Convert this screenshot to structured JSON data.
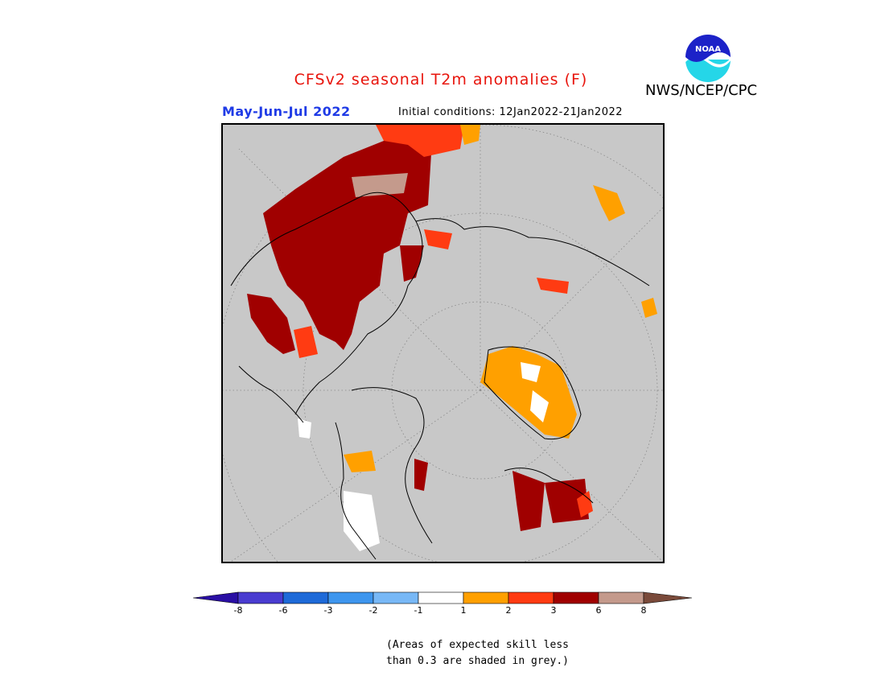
{
  "header": {
    "title": "CFSv2 seasonal T2m anomalies (F)",
    "agency": "NWS/NCEP/CPC",
    "logo_text": "NOAA",
    "season": "May-Jun-Jul 2022",
    "initial_conditions": "Initial conditions: 12Jan2022-21Jan2022"
  },
  "map": {
    "projection": "north-polar-stereographic",
    "grey_color": "#c8c8c8",
    "regions": [
      {
        "area": "Northern Europe / Scandinavia / Western Russia",
        "category": "3 to 6",
        "color": "#a00000"
      },
      {
        "area": "Arctic Russia coast",
        "category": "2 to 3",
        "color": "#ff3b12"
      },
      {
        "area": "Greenland",
        "category": "1 to 2",
        "color": "#ffa000"
      },
      {
        "area": "Eastern Canada / Quebec",
        "category": "3 to 6",
        "color": "#a00000"
      },
      {
        "area": "Western US",
        "category": "-1 to 1",
        "color": "#ffffff"
      },
      {
        "area": "Mediterranean",
        "category": "6 to 8",
        "color": "#c49a8c"
      }
    ]
  },
  "colorbar": {
    "colors": [
      "#2a0fa4",
      "#4a3cd0",
      "#1e6ad8",
      "#3e96ee",
      "#78b8f6",
      "#ffffff",
      "#ffa000",
      "#ff3b12",
      "#a00000",
      "#c49a8c",
      "#7a4a3a"
    ],
    "labels": [
      "-8",
      "-6",
      "-3",
      "-2",
      "-1",
      "1",
      "2",
      "3",
      "6",
      "8"
    ]
  },
  "note": {
    "line1": "(Areas of expected skill less",
    "line2": "than 0.3 are shaded in grey.)"
  }
}
